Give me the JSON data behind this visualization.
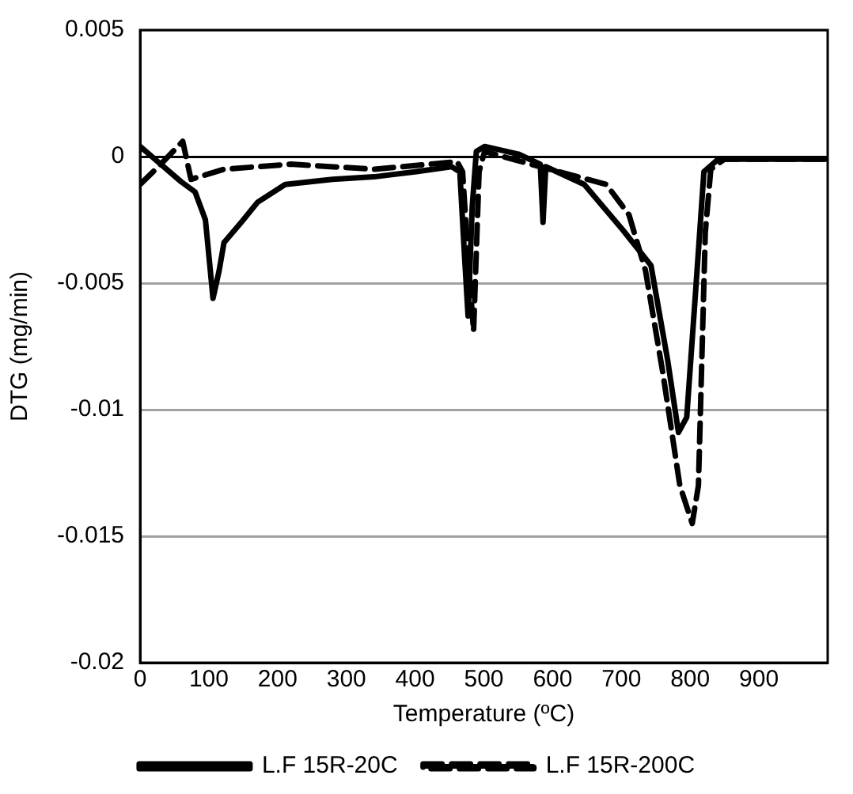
{
  "chart_data": {
    "type": "line",
    "xlabel": "Temperature (ºC)",
    "ylabel": "DTG (mg/min)",
    "xlim": [
      0,
      1000
    ],
    "xticks": [
      0,
      100,
      200,
      300,
      400,
      500,
      600,
      700,
      800,
      900
    ],
    "ylim": [
      -0.02,
      0.005
    ],
    "yticks": [
      0.005,
      0,
      -0.005,
      -0.01,
      -0.015,
      -0.02
    ],
    "grid": "y",
    "legend": "bottom",
    "marker": "none",
    "series": [
      {
        "name": "L.F 15R-20C",
        "color": "#000000",
        "line_style": "solid",
        "x": [
          0,
          30,
          60,
          80,
          95,
          106,
          115,
          122,
          147,
          171,
          211,
          280,
          340,
          400,
          453,
          465,
          472,
          477,
          483,
          489,
          501,
          550,
          582,
          586,
          590,
          646,
          702,
          743,
          767,
          783,
          795,
          808,
          820,
          841,
          900,
          997
        ],
        "values": [
          0.0004,
          -0.0003,
          -0.001,
          -0.0014,
          -0.0025,
          -0.0056,
          -0.0045,
          -0.0034,
          -0.0026,
          -0.0018,
          -0.0011,
          -0.0009,
          -0.0008,
          -0.0006,
          -0.0004,
          -0.0006,
          -0.004,
          -0.0063,
          -0.002,
          0.0002,
          0.0004,
          0.0001,
          -0.0003,
          -0.0026,
          -0.0004,
          -0.0011,
          -0.0029,
          -0.0043,
          -0.008,
          -0.0109,
          -0.0103,
          -0.0053,
          -0.0006,
          -0.0001,
          -0.0001,
          -0.0001
        ]
      },
      {
        "name": "L.F 15R-200C",
        "color": "#000000",
        "line_style": "dashed",
        "x": [
          0,
          30,
          62,
          74,
          122,
          219,
          340,
          461,
          469,
          477,
          485,
          493,
          501,
          582,
          678,
          711,
          735,
          760,
          785,
          803,
          812,
          818,
          822,
          830,
          850,
          1000
        ],
        "values": [
          -0.0011,
          -0.0003,
          0.0006,
          -0.0009,
          -0.0005,
          -0.0003,
          -0.0005,
          -0.0002,
          -0.0006,
          -0.004,
          -0.0069,
          -0.0006,
          0.0002,
          -0.0004,
          -0.0011,
          -0.0023,
          -0.0045,
          -0.0085,
          -0.013,
          -0.0145,
          -0.013,
          -0.007,
          -0.003,
          -0.0005,
          -0.0001,
          -0.0001
        ]
      }
    ]
  }
}
